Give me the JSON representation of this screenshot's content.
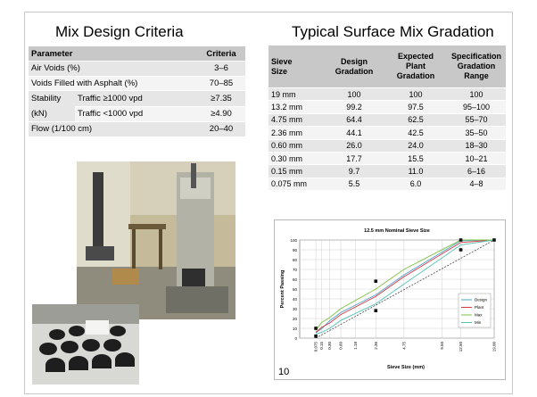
{
  "mix": {
    "title": "Mix Design Criteria",
    "header": {
      "parameter": "Parameter",
      "criteria": "Criteria"
    },
    "rows": {
      "air": {
        "label": "Air Voids (%)",
        "value": "3–6"
      },
      "vfa": {
        "label": "Voids Filled with Asphalt (%)",
        "value": "70–85"
      },
      "stab_label": "Stability",
      "stab_unit": "(kN)",
      "stab1": {
        "label": "Traffic ≥1000 vpd",
        "value": "≥7.35"
      },
      "stab2": {
        "label": "Traffic <1000 vpd",
        "value": "≥4.90"
      },
      "flow": {
        "label": "Flow (1/100 cm)",
        "value": "20–40"
      }
    }
  },
  "gradation": {
    "title": "Typical Surface Mix Gradation",
    "header": {
      "sieve": [
        "Sieve",
        "Size"
      ],
      "design": [
        "Design",
        "Gradation"
      ],
      "plant": [
        "Expected",
        "Plant",
        "Gradation"
      ],
      "spec": [
        "Specification",
        "Gradation",
        "Range"
      ]
    },
    "rows": [
      {
        "sieve": "19 mm",
        "design": "100",
        "plant": "100",
        "spec": "100"
      },
      {
        "sieve": "13.2 mm",
        "design": "99.2",
        "plant": "97.5",
        "spec": "95–100"
      },
      {
        "sieve": "4.75 mm",
        "design": "64.4",
        "plant": "62.5",
        "spec": "55–70"
      },
      {
        "sieve": "2.36 mm",
        "design": "44.1",
        "plant": "42.5",
        "spec": "35–50"
      },
      {
        "sieve": "0.60 mm",
        "design": "26.0",
        "plant": "24.0",
        "spec": "18–30"
      },
      {
        "sieve": "0.30 mm",
        "design": "17.7",
        "plant": "15.5",
        "spec": "10–21"
      },
      {
        "sieve": "0.15 mm",
        "design": "9.7",
        "plant": "11.0",
        "spec": "6–16"
      },
      {
        "sieve": "0.075 mm",
        "design": "5.5",
        "plant": "6.0",
        "spec": "4–8"
      }
    ]
  },
  "page_number": "10",
  "colors": {
    "design": "#4aa3cf",
    "plant": "#d9363e",
    "max": "#7ec243",
    "min": "#57c0b8",
    "maxden": "#333333"
  },
  "chart_data": {
    "type": "line",
    "title": "12.5 mm Nominal Sieve Size",
    "xlabel": "Sieve Size (mm)",
    "ylabel": "Percent Passing",
    "x_scale": "0.45 power",
    "ylim": [
      0,
      100
    ],
    "yticks": [
      0,
      10,
      20,
      30,
      40,
      50,
      60,
      70,
      80,
      90,
      100
    ],
    "x_ticks": [
      0.075,
      0.15,
      0.3,
      0.6,
      1.18,
      2.36,
      4.75,
      9.5,
      12.5,
      19.0
    ],
    "x_tick_labels": [
      "0.075",
      "0.15",
      "0.30",
      "0.60",
      "1.18",
      "2.36",
      "4.75",
      "9.50",
      "12.50",
      "19.00"
    ],
    "series": [
      {
        "name": "Design",
        "color": "#4aa3cf",
        "x": [
          0.075,
          0.15,
          0.3,
          0.6,
          2.36,
          4.75,
          12.5,
          19.0
        ],
        "y": [
          5.5,
          9.7,
          17.7,
          26.0,
          44.1,
          64.4,
          99.2,
          100
        ]
      },
      {
        "name": "Plant",
        "color": "#d9363e",
        "x": [
          0.075,
          0.15,
          0.3,
          0.6,
          2.36,
          4.75,
          12.5,
          19.0
        ],
        "y": [
          6.0,
          11.0,
          15.5,
          24.0,
          42.5,
          62.5,
          97.5,
          100
        ]
      },
      {
        "name": "Max",
        "color": "#7ec243",
        "x": [
          0.075,
          0.15,
          0.3,
          0.6,
          2.36,
          4.75,
          12.5,
          19.0
        ],
        "y": [
          8,
          16,
          21,
          30,
          50,
          70,
          100,
          100
        ]
      },
      {
        "name": "Min",
        "color": "#57c0b8",
        "x": [
          0.075,
          0.15,
          0.3,
          0.6,
          2.36,
          4.75,
          12.5,
          19.0
        ],
        "y": [
          4,
          6,
          10,
          18,
          35,
          55,
          95,
          100
        ]
      }
    ],
    "max_density_line": {
      "x": [
        0.075,
        19.0
      ],
      "y": [
        0,
        100
      ]
    },
    "control_points": [
      {
        "x": 0.075,
        "y": 10
      },
      {
        "x": 0.075,
        "y": 2
      },
      {
        "x": 2.36,
        "y": 58
      },
      {
        "x": 2.36,
        "y": 28
      },
      {
        "x": 12.5,
        "y": 100
      },
      {
        "x": 12.5,
        "y": 90
      },
      {
        "x": 19.0,
        "y": 100
      }
    ],
    "legend": "right-center"
  }
}
